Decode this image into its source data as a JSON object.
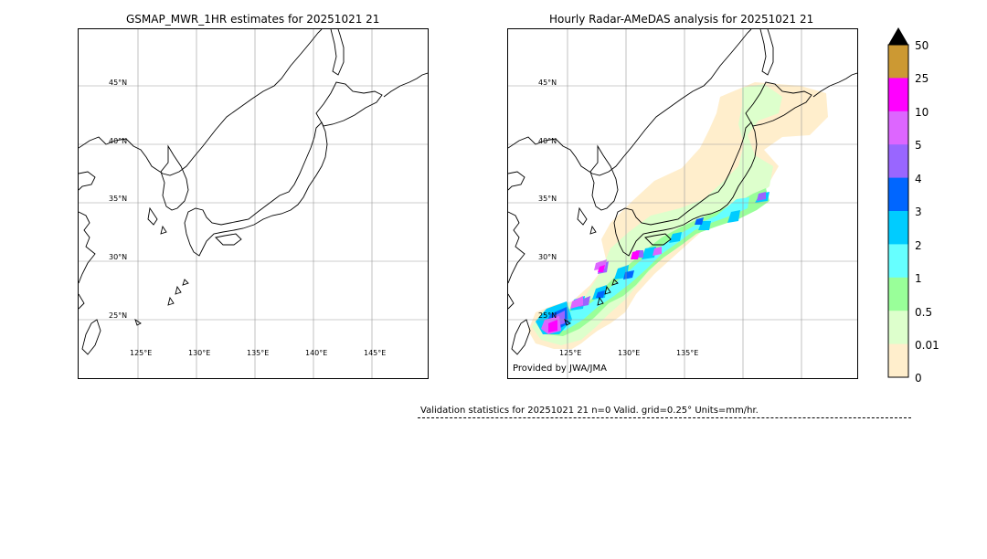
{
  "left_panel": {
    "title": "GSMAP_MWR_1HR estimates for 20251021 21",
    "lat_labels": [
      "45°N",
      "40°N",
      "35°N",
      "30°N",
      "25°N"
    ],
    "lon_labels": [
      "125°E",
      "130°E",
      "135°E",
      "140°E",
      "145°E"
    ]
  },
  "right_panel": {
    "title": "Hourly Radar-AMeDAS analysis for 20251021 21",
    "lat_labels": [
      "45°N",
      "40°N",
      "35°N",
      "30°N",
      "25°N"
    ],
    "lon_labels": [
      "125°E",
      "130°E",
      "135°E"
    ],
    "credit": "Provided by JWA/JMA"
  },
  "colorbar": {
    "labels": [
      "50",
      "25",
      "10",
      "5",
      "4",
      "3",
      "2",
      "1",
      "0.5",
      "0.01",
      "0"
    ],
    "colors": [
      "#cc9933",
      "#ff00ff",
      "#dd66ff",
      "#9966ff",
      "#0066ff",
      "#00ccff",
      "#66ffff",
      "#99ff99",
      "#ddffcc",
      "#ffeecc"
    ],
    "extend_color": "#000000"
  },
  "validation": {
    "text": "Validation statistics for 20251021 21  n=0 Valid. grid=0.25° Units=mm/hr."
  }
}
